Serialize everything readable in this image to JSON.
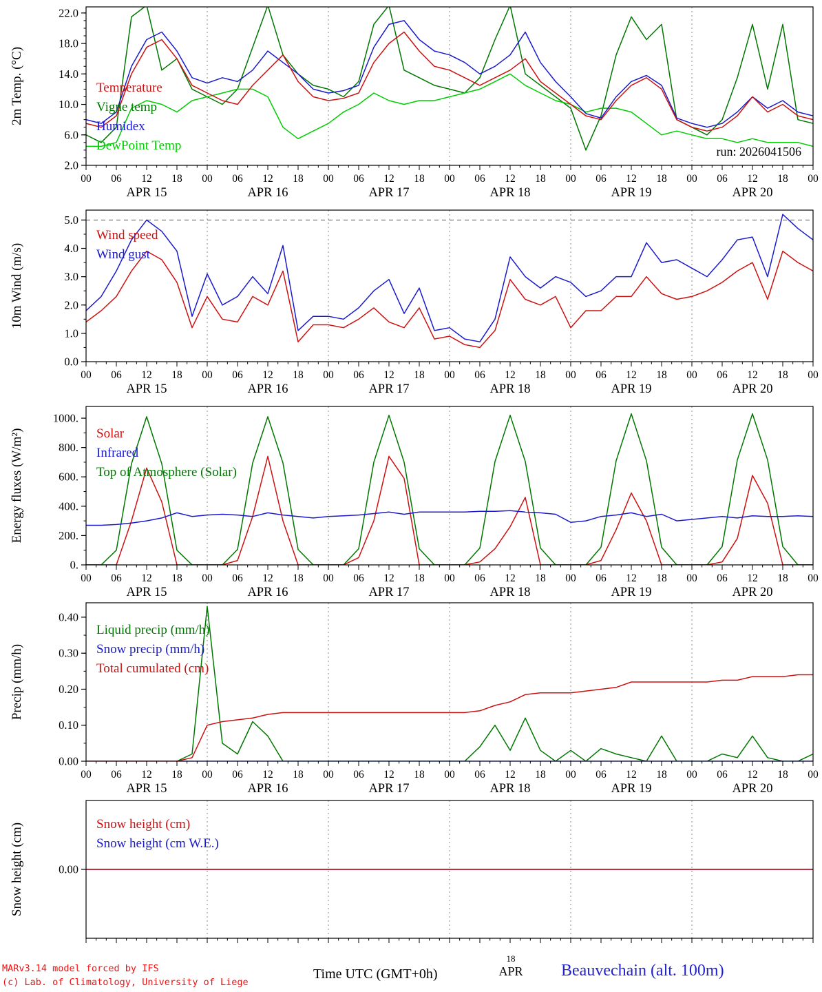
{
  "run_label": "run: 2026041506",
  "x_axis": {
    "hour_labels": [
      "00",
      "06",
      "12",
      "18"
    ],
    "final_label": "00",
    "day_labels": [
      "APR 15",
      "APR 16",
      "APR 17",
      "APR 18",
      "APR 19",
      "APR 20"
    ]
  },
  "footer": {
    "credit_line1": "MARv3.14 model forced by IFS",
    "credit_line2": "(c) Lab. of Climatology, University of Liege",
    "xlabel": "Time UTC (GMT+0h)",
    "x_day_number": "18",
    "x_day_month": "APR",
    "station": "Beauvechain (alt. 100m)"
  },
  "chart_data": [
    {
      "type": "line",
      "ylabel": "2m Temp. (°C)",
      "ylim": [
        2,
        22.8
      ],
      "yticks": [
        2,
        6,
        10,
        14,
        18,
        22
      ],
      "ytick_labels": [
        "2.0",
        "6.0",
        "10.0",
        "14.0",
        "18.0",
        "22.0"
      ],
      "yminor": 1,
      "step_hours": 3,
      "legend": [
        {
          "label": "Temperature",
          "color": "#cc1111"
        },
        {
          "label": "Vigne temp",
          "color": "#007700"
        },
        {
          "label": "Humidex",
          "color": "#1a1acc"
        },
        {
          "label": "DewPoint Temp",
          "color": "#00cc00"
        }
      ],
      "series": [
        {
          "name": "Vigne temp",
          "color": "#007700",
          "values": [
            6.0,
            5.0,
            7.0,
            21.5,
            23.0,
            14.5,
            16.0,
            12.0,
            11.0,
            10.0,
            12.0,
            17.5,
            23.0,
            16.5,
            14.0,
            12.5,
            12.0,
            11.0,
            13.0,
            20.5,
            23.0,
            14.5,
            13.5,
            12.5,
            12.0,
            11.5,
            13.5,
            18.5,
            23.0,
            14.0,
            12.5,
            11.0,
            9.5,
            4.0,
            8.5,
            16.5,
            21.5,
            18.5,
            20.5,
            8.0,
            7.0,
            6.0,
            8.0,
            13.5,
            20.5,
            12.0,
            20.5,
            8.0,
            7.5
          ]
        },
        {
          "name": "DewPoint Temp",
          "color": "#00cc00",
          "values": [
            4.5,
            4.5,
            5.0,
            9.5,
            10.5,
            10.0,
            9.0,
            10.5,
            11.0,
            11.5,
            12.0,
            12.0,
            11.0,
            7.0,
            5.5,
            6.5,
            7.5,
            9.0,
            10.0,
            11.5,
            10.5,
            10.0,
            10.5,
            10.5,
            11.0,
            11.5,
            12.0,
            13.0,
            14.0,
            12.5,
            11.5,
            10.5,
            10.0,
            9.0,
            9.5,
            9.5,
            9.0,
            7.5,
            6.0,
            6.5,
            6.0,
            5.5,
            5.5,
            5.0,
            5.5,
            5.0,
            5.0,
            5.0,
            4.5
          ]
        },
        {
          "name": "Humidex",
          "color": "#1a1acc",
          "values": [
            8.0,
            7.5,
            9.0,
            15.0,
            18.5,
            19.5,
            17.0,
            13.5,
            12.8,
            13.5,
            13.0,
            14.5,
            17.0,
            15.5,
            14.0,
            12.0,
            11.5,
            11.8,
            12.5,
            17.5,
            20.5,
            21.0,
            18.5,
            17.0,
            16.5,
            15.5,
            14.0,
            15.0,
            16.5,
            19.5,
            15.5,
            13.0,
            11.0,
            8.8,
            8.2,
            11.0,
            13.0,
            13.8,
            12.5,
            8.2,
            7.5,
            7.0,
            7.5,
            9.0,
            11.0,
            9.5,
            10.5,
            9.0,
            8.5
          ]
        },
        {
          "name": "Temperature",
          "color": "#cc1111",
          "values": [
            7.5,
            7.0,
            8.5,
            14.0,
            17.5,
            18.5,
            16.0,
            12.5,
            11.5,
            10.5,
            10.0,
            12.5,
            14.5,
            16.5,
            13.0,
            11.0,
            10.5,
            10.8,
            11.5,
            15.5,
            18.0,
            19.5,
            17.0,
            15.0,
            14.5,
            13.5,
            12.5,
            13.5,
            14.5,
            16.0,
            13.0,
            11.5,
            10.0,
            8.5,
            8.0,
            10.5,
            12.5,
            13.5,
            12.0,
            8.0,
            7.0,
            6.5,
            7.0,
            8.5,
            11.0,
            9.0,
            10.0,
            8.5,
            8.0
          ]
        }
      ]
    },
    {
      "type": "line",
      "ylabel": "10m Wind (m/s)",
      "ylim": [
        0,
        5.35
      ],
      "yticks": [
        0,
        1,
        2,
        3,
        4,
        5
      ],
      "ytick_labels": [
        "0.0",
        "1.0",
        "2.0",
        "3.0",
        "4.0",
        "5.0"
      ],
      "yminor": 0.5,
      "hline": 5.0,
      "step_hours": 3,
      "legend": [
        {
          "label": "Wind speed",
          "color": "#cc1111"
        },
        {
          "label": "Wind gust",
          "color": "#1a1acc"
        }
      ],
      "series": [
        {
          "name": "Wind gust",
          "color": "#1a1acc",
          "values": [
            1.8,
            2.3,
            3.2,
            4.3,
            5.0,
            4.6,
            3.9,
            1.6,
            3.1,
            2.0,
            2.3,
            3.0,
            2.4,
            4.1,
            1.1,
            1.6,
            1.6,
            1.5,
            1.9,
            2.5,
            2.9,
            1.7,
            2.6,
            1.1,
            1.2,
            0.8,
            0.7,
            1.5,
            3.7,
            3.0,
            2.6,
            3.0,
            2.8,
            2.3,
            2.5,
            3.0,
            3.0,
            4.2,
            3.5,
            3.6,
            3.3,
            3.0,
            3.6,
            4.3,
            4.4,
            3.0,
            5.2,
            4.7,
            4.3
          ]
        },
        {
          "name": "Wind speed",
          "color": "#cc1111",
          "values": [
            1.4,
            1.8,
            2.3,
            3.2,
            3.9,
            3.6,
            2.8,
            1.2,
            2.3,
            1.5,
            1.4,
            2.3,
            2.0,
            3.2,
            0.7,
            1.3,
            1.3,
            1.2,
            1.5,
            1.9,
            1.4,
            1.2,
            1.9,
            0.8,
            0.9,
            0.6,
            0.5,
            1.1,
            2.9,
            2.2,
            2.0,
            2.3,
            1.2,
            1.8,
            1.8,
            2.3,
            2.3,
            3.0,
            2.4,
            2.2,
            2.3,
            2.5,
            2.8,
            3.2,
            3.5,
            2.2,
            3.9,
            3.5,
            3.2
          ]
        }
      ]
    },
    {
      "type": "line",
      "ylabel": "Energy fluxes (W/m²)",
      "ylim": [
        0,
        1080
      ],
      "yticks": [
        0,
        200,
        400,
        600,
        800,
        1000
      ],
      "ytick_labels": [
        "0.",
        "200.",
        "400.",
        "600.",
        "800.",
        "1000."
      ],
      "yminor": 100,
      "step_hours": 3,
      "legend": [
        {
          "label": "Solar",
          "color": "#cc1111"
        },
        {
          "label": "Infrared",
          "color": "#1a1acc"
        },
        {
          "label": "Top of Atmosphere (Solar)",
          "color": "#007700"
        }
      ],
      "series": [
        {
          "name": "Top of Atmosphere (Solar)",
          "color": "#007700",
          "values": [
            0,
            0,
            100,
            690,
            1010,
            690,
            100,
            0,
            0,
            0,
            105,
            695,
            1010,
            695,
            105,
            0,
            0,
            0,
            110,
            700,
            1020,
            700,
            110,
            0,
            0,
            0,
            115,
            705,
            1020,
            705,
            115,
            0,
            0,
            0,
            120,
            710,
            1030,
            710,
            120,
            0,
            0,
            0,
            125,
            715,
            1030,
            715,
            125,
            0,
            0
          ]
        },
        {
          "name": "Solar",
          "color": "#cc1111",
          "values": [
            0,
            0,
            0,
            300,
            660,
            430,
            0,
            0,
            0,
            0,
            30,
            330,
            740,
            300,
            0,
            0,
            0,
            0,
            50,
            300,
            740,
            590,
            0,
            0,
            0,
            0,
            20,
            110,
            260,
            460,
            0,
            0,
            0,
            0,
            30,
            240,
            490,
            300,
            0,
            0,
            0,
            0,
            20,
            180,
            610,
            420,
            0,
            0,
            0
          ]
        },
        {
          "name": "Infrared",
          "color": "#1a1acc",
          "values": [
            270,
            270,
            275,
            285,
            300,
            320,
            355,
            330,
            340,
            345,
            340,
            330,
            355,
            340,
            330,
            320,
            330,
            335,
            340,
            350,
            360,
            345,
            360,
            360,
            360,
            360,
            365,
            365,
            370,
            360,
            355,
            345,
            290,
            300,
            330,
            340,
            355,
            330,
            345,
            300,
            310,
            320,
            330,
            320,
            335,
            330,
            330,
            335,
            330
          ]
        }
      ]
    },
    {
      "type": "line",
      "ylabel": "Precip (mm/h)",
      "ylim": [
        0,
        0.44
      ],
      "yticks": [
        0,
        0.1,
        0.2,
        0.3,
        0.4
      ],
      "ytick_labels": [
        "0.00",
        "0.10",
        "0.20",
        "0.30",
        "0.40"
      ],
      "yminor": 0.05,
      "step_hours": 3,
      "legend": [
        {
          "label": "Liquid precip (mm/h)",
          "color": "#007700"
        },
        {
          "label": "Snow precip (mm/h)",
          "color": "#1a1acc"
        },
        {
          "label": "Total cumulated (cm)",
          "color": "#cc1111"
        }
      ],
      "series": [
        {
          "name": "Liquid precip (mm/h)",
          "color": "#007700",
          "values": [
            0,
            0,
            0,
            0,
            0,
            0,
            0,
            0.02,
            0.43,
            0.05,
            0.02,
            0.11,
            0.07,
            0,
            0,
            0,
            0,
            0,
            0,
            0,
            0,
            0,
            0,
            0,
            0,
            0,
            0.04,
            0.1,
            0.03,
            0.12,
            0.03,
            0,
            0.03,
            0,
            0.035,
            0.02,
            0.01,
            0,
            0.07,
            0,
            0,
            0,
            0.02,
            0.01,
            0.07,
            0.01,
            0,
            0,
            0.02
          ]
        },
        {
          "name": "Snow precip (mm/h)",
          "color": "#1a1acc",
          "values": [
            0,
            0,
            0,
            0,
            0,
            0,
            0,
            0,
            0,
            0,
            0,
            0,
            0,
            0,
            0,
            0,
            0,
            0,
            0,
            0,
            0,
            0,
            0,
            0,
            0,
            0,
            0,
            0,
            0,
            0,
            0,
            0,
            0,
            0,
            0,
            0,
            0,
            0,
            0,
            0,
            0,
            0,
            0,
            0,
            0,
            0,
            0,
            0,
            0
          ]
        },
        {
          "name": "Total cumulated (cm)",
          "color": "#cc1111",
          "values": [
            0,
            0,
            0,
            0,
            0,
            0,
            0,
            0.01,
            0.1,
            0.11,
            0.115,
            0.12,
            0.13,
            0.135,
            0.135,
            0.135,
            0.135,
            0.135,
            0.135,
            0.135,
            0.135,
            0.135,
            0.135,
            0.135,
            0.135,
            0.135,
            0.14,
            0.155,
            0.165,
            0.185,
            0.19,
            0.19,
            0.19,
            0.195,
            0.2,
            0.205,
            0.22,
            0.22,
            0.22,
            0.22,
            0.22,
            0.22,
            0.225,
            0.225,
            0.235,
            0.235,
            0.235,
            0.24,
            0.24
          ]
        }
      ]
    },
    {
      "type": "line",
      "ylabel": "Snow height (cm)",
      "ylim": [
        -1,
        1
      ],
      "yticks": [
        0
      ],
      "ytick_labels": [
        "0.00"
      ],
      "yminor": null,
      "step_hours": 3,
      "legend": [
        {
          "label": "Snow height (cm)",
          "color": "#cc1111"
        },
        {
          "label": "Snow height (cm W.E.)",
          "color": "#1a1acc"
        }
      ],
      "series": [
        {
          "name": "Snow height (cm W.E.)",
          "color": "#1a1acc",
          "values": [
            0,
            0,
            0,
            0,
            0,
            0,
            0,
            0,
            0,
            0,
            0,
            0,
            0,
            0,
            0,
            0,
            0,
            0,
            0,
            0,
            0,
            0,
            0,
            0,
            0,
            0,
            0,
            0,
            0,
            0,
            0,
            0,
            0,
            0,
            0,
            0,
            0,
            0,
            0,
            0,
            0,
            0,
            0,
            0,
            0,
            0,
            0,
            0,
            0
          ]
        },
        {
          "name": "Snow height (cm)",
          "color": "#cc1111",
          "values": [
            0,
            0,
            0,
            0,
            0,
            0,
            0,
            0,
            0,
            0,
            0,
            0,
            0,
            0,
            0,
            0,
            0,
            0,
            0,
            0,
            0,
            0,
            0,
            0,
            0,
            0,
            0,
            0,
            0,
            0,
            0,
            0,
            0,
            0,
            0,
            0,
            0,
            0,
            0,
            0,
            0,
            0,
            0,
            0,
            0,
            0,
            0,
            0,
            0
          ]
        }
      ]
    }
  ]
}
